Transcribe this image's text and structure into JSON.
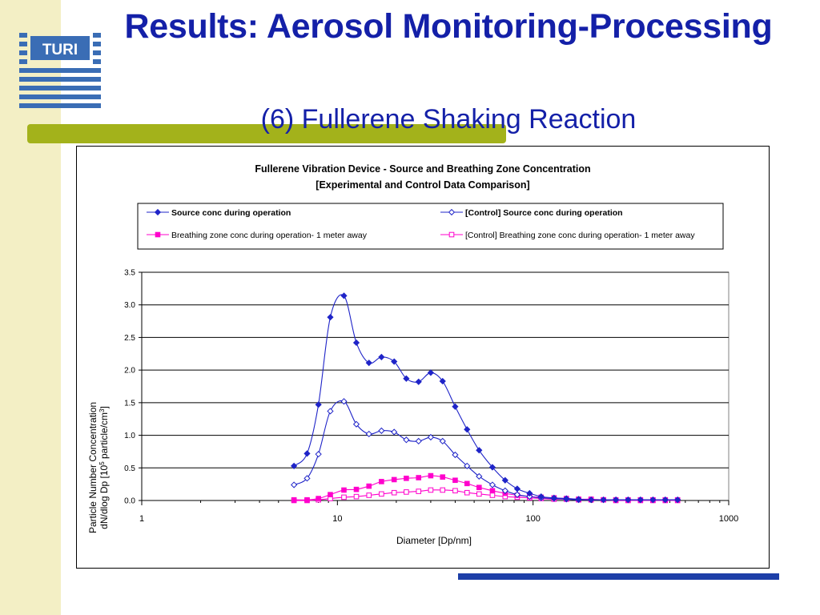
{
  "slide": {
    "title": "Results: Aerosol Monitoring-Processing",
    "subtitle": "(6) Fullerene Shaking Reaction",
    "logo_text": "TURI"
  },
  "colors": {
    "title": "#1420a8",
    "side_band": "#f3efc5",
    "green_bar": "#a3b21b",
    "blue_bar": "#1d3fa8",
    "logo": "#3a6db5",
    "series_blue": "#1f24c8",
    "series_magenta": "#ff00cc"
  },
  "chart_data": {
    "type": "line",
    "title_line1": "Fullerene Vibration Device - Source and Breathing Zone Concentration",
    "title_line2": "[Experimental and Control Data Comparison]",
    "xlabel": "Diameter [Dp/nm]",
    "ylabel_line1": "Particle Number Concentration",
    "ylabel_line2": "dN/dlog Dp [10^5 particle/cm^3]",
    "x_scale": "log",
    "xlim": [
      1,
      1000
    ],
    "ylim": [
      0,
      3.5
    ],
    "x_ticks": [
      "1",
      "10",
      "100",
      "1000"
    ],
    "y_ticks": [
      "0.0",
      "0.5",
      "1.0",
      "1.5",
      "2.0",
      "2.5",
      "3.0",
      "3.5"
    ],
    "grid": "horizontal",
    "legend_position": "top",
    "x": [
      6,
      7,
      8,
      9.2,
      10.8,
      12.5,
      14.5,
      16.8,
      19.5,
      22.5,
      26,
      30,
      34.5,
      40,
      46,
      53,
      62,
      72,
      83,
      96,
      110,
      128,
      148,
      171,
      198,
      229,
      265,
      306,
      354,
      410,
      474,
      548
    ],
    "series": [
      {
        "name": "Source conc during operation",
        "marker": "filled-diamond",
        "color": "#1f24c8",
        "values": [
          0.53,
          0.72,
          1.47,
          2.81,
          3.14,
          2.42,
          2.11,
          2.2,
          2.13,
          1.87,
          1.82,
          1.96,
          1.83,
          1.44,
          1.09,
          0.77,
          0.51,
          0.31,
          0.18,
          0.11,
          0.06,
          0.04,
          0.03,
          0.02,
          0.01,
          0.01,
          0.01,
          0.01,
          0.01,
          0.01,
          0.01,
          0.01
        ]
      },
      {
        "name": "[Control] Source conc during operation",
        "marker": "open-diamond",
        "color": "#1f24c8",
        "values": [
          0.24,
          0.34,
          0.71,
          1.37,
          1.52,
          1.17,
          1.02,
          1.07,
          1.05,
          0.93,
          0.91,
          0.97,
          0.91,
          0.7,
          0.53,
          0.37,
          0.24,
          0.15,
          0.09,
          0.06,
          0.04,
          0.03,
          0.02,
          0.01,
          0.01,
          0.01,
          0.01,
          0.01,
          0.01,
          0.01,
          0.01,
          0.01
        ]
      },
      {
        "name": "Breathing zone conc during operation- 1 meter away",
        "marker": "filled-square",
        "color": "#ff00cc",
        "values": [
          0.01,
          0.01,
          0.03,
          0.09,
          0.16,
          0.17,
          0.22,
          0.29,
          0.32,
          0.34,
          0.35,
          0.38,
          0.36,
          0.31,
          0.26,
          0.2,
          0.15,
          0.11,
          0.08,
          0.06,
          0.05,
          0.04,
          0.03,
          0.02,
          0.02,
          0.01,
          0.01,
          0.01,
          0.01,
          0.01,
          0.01,
          0.01
        ]
      },
      {
        "name": "[Control] Breathing zone conc during operation- 1 meter away",
        "marker": "open-square",
        "color": "#ff00cc",
        "values": [
          0.0,
          0.0,
          0.01,
          0.03,
          0.05,
          0.06,
          0.08,
          0.1,
          0.12,
          0.13,
          0.14,
          0.16,
          0.16,
          0.15,
          0.12,
          0.1,
          0.08,
          0.06,
          0.05,
          0.04,
          0.03,
          0.02,
          0.02,
          0.01,
          0.01,
          0.01,
          0.0,
          0.0,
          0.0,
          0.0,
          0.0,
          0.0
        ]
      }
    ]
  }
}
